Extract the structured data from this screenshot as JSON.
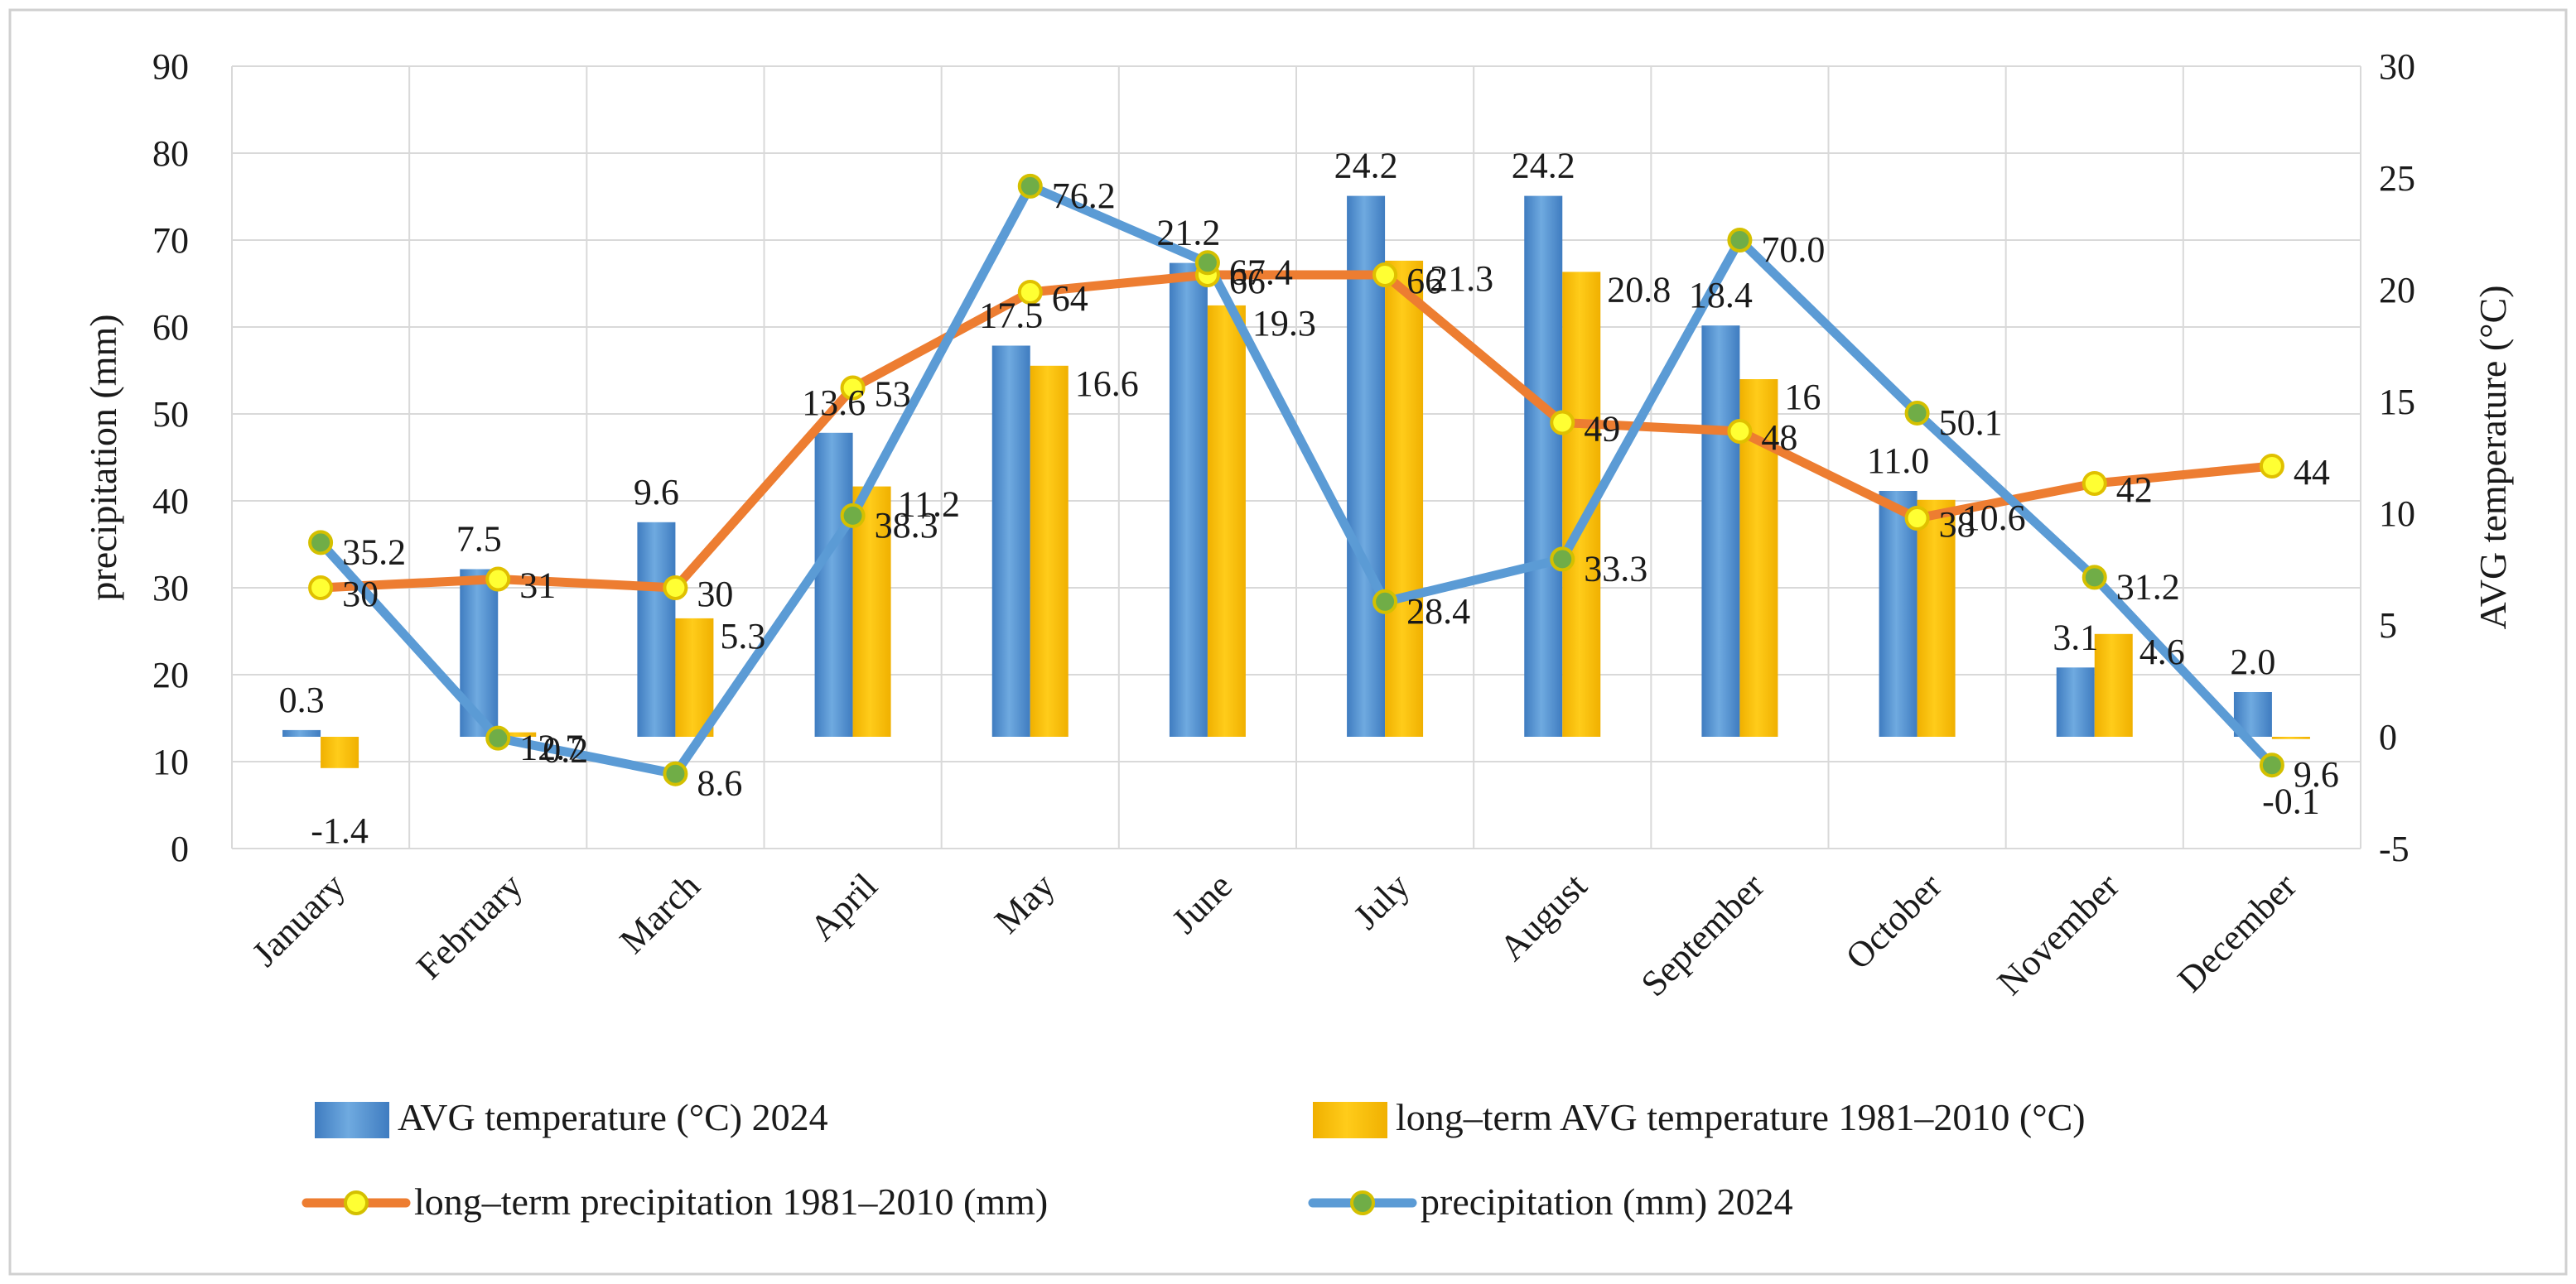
{
  "chart_data": {
    "type": "bar",
    "categories": [
      "January",
      "February",
      "March",
      "April",
      "May",
      "June",
      "July",
      "August",
      "September",
      "October",
      "November",
      "December"
    ],
    "left_axis": {
      "label": "precipitation (mm)",
      "range": [
        0,
        90
      ],
      "ticks": [
        "0",
        "10",
        "20",
        "30",
        "40",
        "50",
        "60",
        "70",
        "80",
        "90"
      ]
    },
    "right_axis": {
      "label": "AVG temperature  (°C)",
      "range": [
        -5,
        30
      ],
      "ticks": [
        "-5",
        "0",
        "5",
        "10",
        "15",
        "20",
        "25",
        "30"
      ]
    },
    "grid": true,
    "legend_position": "bottom",
    "series": [
      {
        "name": "AVG temperature (°C) 2024",
        "kind": "bar",
        "axis": "right",
        "color": "#5B9BD5",
        "values": [
          0.3,
          7.5,
          9.6,
          13.6,
          17.5,
          21.2,
          24.2,
          24.2,
          18.4,
          11.0,
          3.1,
          2.0
        ],
        "labels": [
          "0.3",
          "7.5",
          "9.6",
          "13.6",
          "17.5",
          "21.2",
          "24.2",
          "24.2",
          "18.4",
          "11.0",
          "3.1",
          "2.0"
        ]
      },
      {
        "name": "long–term AVG temperature 1981–2010  (°C)",
        "kind": "bar",
        "axis": "right",
        "color": "#FFC000",
        "values": [
          -1.4,
          0.2,
          5.3,
          11.2,
          16.6,
          19.3,
          21.3,
          20.8,
          16,
          10.6,
          4.6,
          -0.1
        ],
        "labels": [
          "-1.4",
          "0.2",
          "5.3",
          "11.2",
          "16.6",
          "19.3",
          "21.3",
          "20.8",
          "16",
          "10.6",
          "4.6",
          "-0.1"
        ]
      },
      {
        "name": "long–term precipitation 1981–2010   (mm)",
        "kind": "line",
        "axis": "left",
        "color": "#ED7D31",
        "marker": "#FFFF33",
        "values": [
          30,
          31,
          30,
          53,
          64,
          66,
          66,
          49,
          48,
          38,
          42,
          44
        ],
        "labels": [
          "30",
          "31",
          "30",
          "53",
          "64",
          "66",
          "66",
          "49",
          "48",
          "38",
          "42",
          "44"
        ]
      },
      {
        "name": "precipitation (mm) 2024",
        "kind": "line",
        "axis": "left",
        "color": "#5B9BD5",
        "marker": "#70AD47",
        "values": [
          35.2,
          12.7,
          8.6,
          38.3,
          76.2,
          67.4,
          28.4,
          33.3,
          70.0,
          50.1,
          31.2,
          9.6
        ],
        "labels": [
          "35.2",
          "12.7",
          "8.6",
          "38.3",
          "76.2",
          "67.4",
          "28.4",
          "33.3",
          "70.0",
          "50.1",
          "31.2",
          "9.6"
        ]
      }
    ]
  }
}
